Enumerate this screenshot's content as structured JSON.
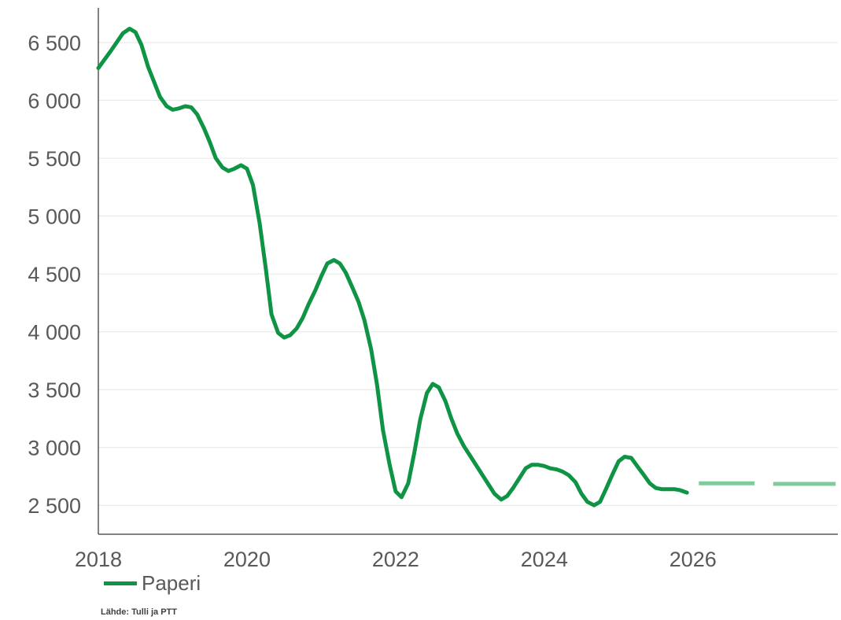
{
  "chart_data": {
    "type": "line",
    "xlim": [
      2018,
      2027.95
    ],
    "ylim": [
      2250,
      6800
    ],
    "yticks": [
      {
        "value": 2500,
        "label": "2 500"
      },
      {
        "value": 3000,
        "label": "3 000"
      },
      {
        "value": 3500,
        "label": "3 500"
      },
      {
        "value": 4000,
        "label": "4 000"
      },
      {
        "value": 4500,
        "label": "4 500"
      },
      {
        "value": 5000,
        "label": "5 000"
      },
      {
        "value": 5500,
        "label": "5 500"
      },
      {
        "value": 6000,
        "label": "6 000"
      },
      {
        "value": 6500,
        "label": "6 500"
      }
    ],
    "xticks": [
      {
        "value": 2018,
        "label": "2018"
      },
      {
        "value": 2020,
        "label": "2020"
      },
      {
        "value": 2022,
        "label": "2022"
      },
      {
        "value": 2024,
        "label": "2024"
      },
      {
        "value": 2026,
        "label": "2026"
      }
    ],
    "grid": true,
    "legend_position": "bottom-left",
    "colors": {
      "series": "#0e9444",
      "forecast": "#7fcb9a",
      "grid": "#e6e6e6",
      "axis": "#595959"
    },
    "series": [
      {
        "name": "Paperi",
        "x": [
          2018.0,
          2018.17,
          2018.33,
          2018.42,
          2018.5,
          2018.58,
          2018.67,
          2018.83,
          2018.92,
          2019.0,
          2019.08,
          2019.17,
          2019.25,
          2019.33,
          2019.42,
          2019.5,
          2019.58,
          2019.67,
          2019.75,
          2019.83,
          2019.92,
          2020.0,
          2020.08,
          2020.17,
          2020.25,
          2020.33,
          2020.42,
          2020.5,
          2020.58,
          2020.67,
          2020.75,
          2020.83,
          2020.92,
          2021.0,
          2021.08,
          2021.17,
          2021.25,
          2021.33,
          2021.42,
          2021.5,
          2021.58,
          2021.67,
          2021.75,
          2021.83,
          2021.92,
          2022.0,
          2022.08,
          2022.17,
          2022.25,
          2022.33,
          2022.42,
          2022.5,
          2022.58,
          2022.67,
          2022.75,
          2022.83,
          2022.92,
          2023.0,
          2023.17,
          2023.33,
          2023.42,
          2023.5,
          2023.58,
          2023.67,
          2023.75,
          2023.83,
          2023.92,
          2024.0,
          2024.08,
          2024.17,
          2024.25,
          2024.33,
          2024.42,
          2024.5,
          2024.58,
          2024.67,
          2024.75,
          2024.83,
          2024.92,
          2025.0,
          2025.08,
          2025.17,
          2025.25,
          2025.33,
          2025.42,
          2025.5,
          2025.58,
          2025.67,
          2025.75,
          2025.83,
          2025.92
        ],
        "y": [
          6280,
          6430,
          6580,
          6620,
          6590,
          6480,
          6290,
          6030,
          5950,
          5920,
          5930,
          5950,
          5940,
          5880,
          5760,
          5640,
          5500,
          5420,
          5390,
          5410,
          5440,
          5410,
          5270,
          4940,
          4560,
          4150,
          3990,
          3950,
          3970,
          4030,
          4120,
          4240,
          4360,
          4480,
          4590,
          4620,
          4590,
          4510,
          4380,
          4260,
          4100,
          3850,
          3540,
          3150,
          2850,
          2620,
          2570,
          2690,
          2950,
          3240,
          3470,
          3550,
          3520,
          3400,
          3250,
          3120,
          3010,
          2930,
          2760,
          2600,
          2550,
          2580,
          2650,
          2740,
          2820,
          2850,
          2850,
          2840,
          2820,
          2810,
          2790,
          2760,
          2700,
          2600,
          2530,
          2500,
          2530,
          2640,
          2770,
          2880,
          2920,
          2910,
          2840,
          2770,
          2690,
          2650,
          2640,
          2640,
          2640,
          2630,
          2610
        ]
      },
      {
        "name": "",
        "style": "forecast",
        "segments": [
          {
            "x": [
              2026.08,
              2026.83
            ],
            "y": [
              2690,
              2690
            ]
          },
          {
            "x": [
              2027.08,
              2027.92
            ],
            "y": [
              2685,
              2685
            ]
          }
        ]
      }
    ]
  },
  "legend": {
    "label": "Paperi"
  },
  "source": "Lähde: Tulli ja PTT"
}
